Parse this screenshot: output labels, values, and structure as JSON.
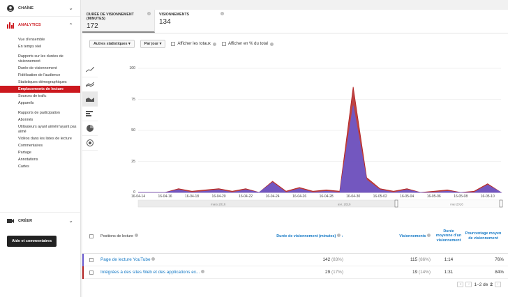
{
  "sidebar": {
    "channel": "CHAÎNE",
    "analytics": "ANALYTICS",
    "creer": "CRÉER",
    "items": [
      {
        "label": "Vue d'ensemble"
      },
      {
        "label": "En temps réel"
      },
      {
        "label": "Rapports sur les durées de visionnement",
        "group": true
      },
      {
        "label": "Durée de visionnement"
      },
      {
        "label": "Fidélisation de l'audience"
      },
      {
        "label": "Statistiques démographiques"
      },
      {
        "label": "Emplacements de lecture",
        "active": true
      },
      {
        "label": "Sources de trafic"
      },
      {
        "label": "Appareils"
      },
      {
        "label": "Rapports de participation",
        "group": true
      },
      {
        "label": "Abonnés"
      },
      {
        "label": "Utilisateurs ayant aimé/n'ayant pas aimé"
      },
      {
        "label": "Vidéos dans les listes de lecture"
      },
      {
        "label": "Commentaires"
      },
      {
        "label": "Partage"
      },
      {
        "label": "Annotations"
      },
      {
        "label": "Cartes"
      }
    ],
    "help_button": "Aide et commentaires"
  },
  "tabs": [
    {
      "title": "DURÉE DE VISIONNEMENT (MINUTES)",
      "value": "172"
    },
    {
      "title": "VISIONNEMENTS",
      "value": "134"
    }
  ],
  "toolbar": {
    "stats_dropdown": "Autres statistiques",
    "period_dropdown": "Par jour",
    "show_totals": "Afficher les totaux",
    "show_percent": "Afficher en % du total"
  },
  "chart_data": {
    "type": "area",
    "x": [
      "16-04-14",
      "16-04-15",
      "16-04-16",
      "16-04-17",
      "16-04-18",
      "16-04-19",
      "16-04-20",
      "16-04-21",
      "16-04-22",
      "16-04-23",
      "16-04-24",
      "16-04-25",
      "16-04-26",
      "16-04-27",
      "16-04-28",
      "16-04-29",
      "16-04-30",
      "16-05-01",
      "16-05-02",
      "16-05-03",
      "16-05-04",
      "16-05-05",
      "16-05-06",
      "16-05-07",
      "16-05-08",
      "16-05-09",
      "16-05-10",
      "16-05-11"
    ],
    "xticks": [
      "16-04-14",
      "16-04-16",
      "16-04-18",
      "16-04-20",
      "16-04-22",
      "16-04-24",
      "16-04-26",
      "16-04-28",
      "16-04-30",
      "16-05-02",
      "16-05-04",
      "16-05-06",
      "16-05-08",
      "16-05-10"
    ],
    "series": [
      {
        "name": "Page de lecture YouTube",
        "color": "#6a5acd",
        "values": [
          0,
          0,
          0,
          2,
          0,
          1,
          2,
          0,
          2,
          0,
          8,
          0,
          3,
          0,
          1,
          0,
          70,
          10,
          2,
          0,
          2,
          0,
          0,
          1,
          0,
          0,
          6,
          0
        ]
      },
      {
        "name": "Intégrées à des sites Web et des applications ex...",
        "color": "#b22222",
        "values": [
          0,
          0,
          0,
          3,
          1,
          2,
          3,
          1,
          3,
          0,
          9,
          1,
          4,
          1,
          2,
          1,
          85,
          12,
          3,
          1,
          3,
          0,
          1,
          2,
          0,
          1,
          7,
          0
        ]
      }
    ],
    "ylim": [
      0,
      100
    ],
    "yticks": [
      0,
      25,
      50,
      75,
      100
    ],
    "navigator_labels": [
      "mars 2016",
      "avr. 2016",
      "mai 2016"
    ]
  },
  "table": {
    "headers": {
      "name": "Positions de lecture",
      "duration": "Durée de visionnement (minutes)",
      "views": "Visionnements",
      "avg": "Durée moyenne d'un visionnement",
      "pct": "Pourcentage moyen de visionnement"
    },
    "rows": [
      {
        "name": "Page de lecture YouTube",
        "duration": "142",
        "duration_pct": "(83%)",
        "views": "115",
        "views_pct": "(86%)",
        "avg": "1:14",
        "pct": "76%",
        "color": "#6a5acd"
      },
      {
        "name": "Intégrées à des sites Web et des applications ex...",
        "duration": "29",
        "duration_pct": "(17%)",
        "views": "19",
        "views_pct": "(14%)",
        "avg": "1:31",
        "pct": "84%",
        "color": "#b22222"
      }
    ]
  },
  "pager": {
    "text": "1–2 de",
    "total": "2"
  }
}
